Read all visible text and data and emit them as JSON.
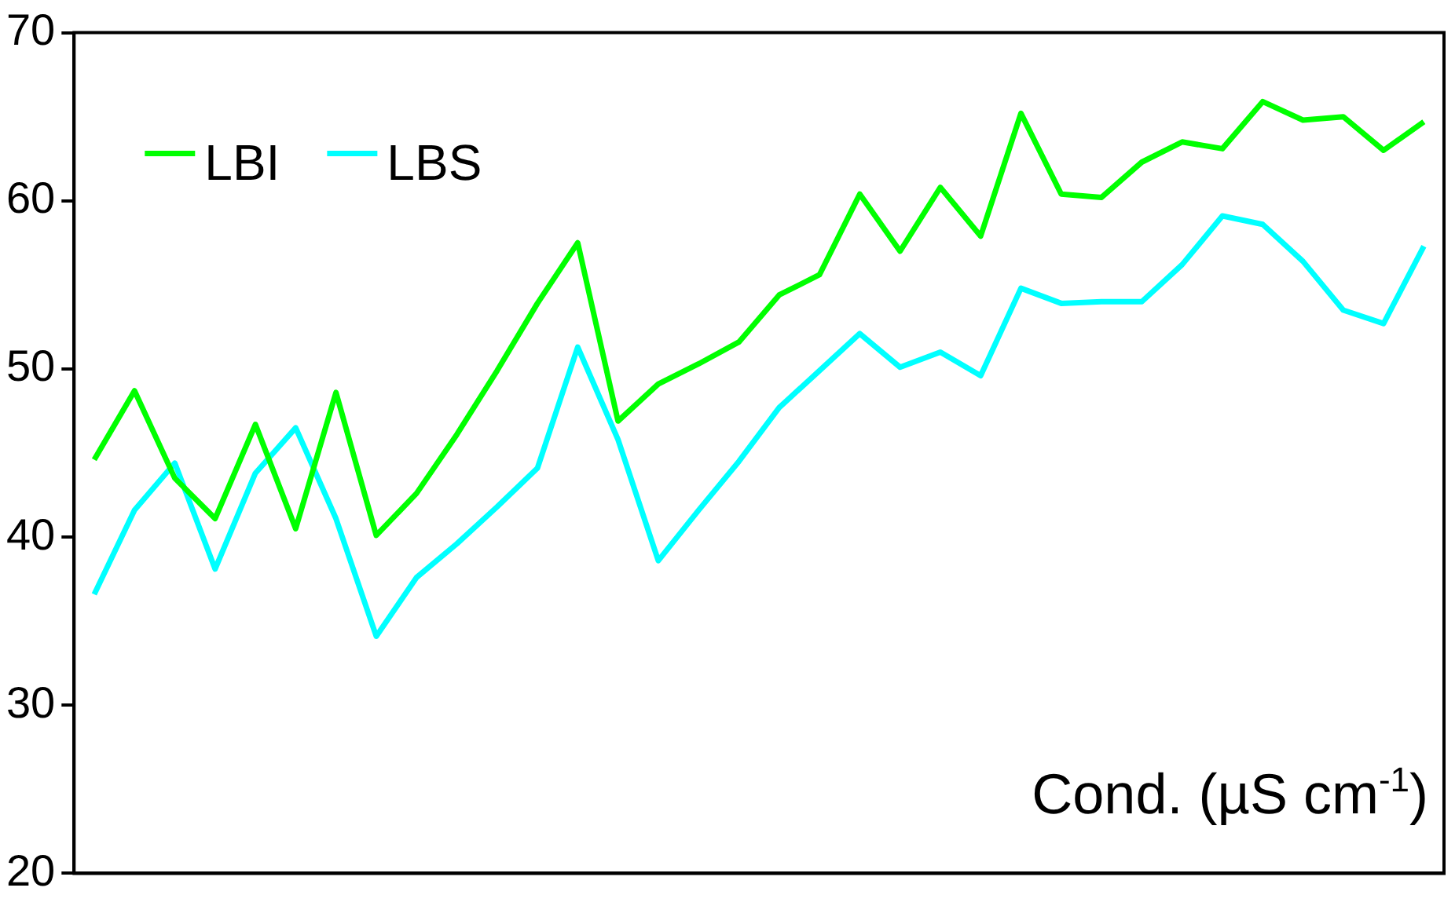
{
  "chart_data": {
    "type": "line",
    "xlabel": "Cond. (µS cm$^{-1}$)",
    "categories": [
      null,
      null,
      null,
      null,
      null,
      null,
      null,
      null,
      null,
      null,
      null,
      null,
      null,
      null,
      null,
      null,
      null,
      null,
      null,
      null,
      null,
      null,
      null,
      null,
      null,
      null,
      null,
      null,
      null,
      null,
      null,
      null,
      null,
      null
    ],
    "series": [
      {
        "name": "LBI",
        "color": "#00ff00",
        "values": [
          44.6,
          48.7,
          43.5,
          41.1,
          46.7,
          40.5,
          48.6,
          40.1,
          42.6,
          46.1,
          49.9,
          53.9,
          57.5,
          46.9,
          49.1,
          50.3,
          51.6,
          54.4,
          55.6,
          60.4,
          57.0,
          60.8,
          57.9,
          65.2,
          60.4,
          60.2,
          62.3,
          63.5,
          63.1,
          65.9,
          64.8,
          65.0,
          63.0,
          64.7
        ]
      },
      {
        "name": "LBS",
        "color": "#00ffff",
        "values": [
          36.6,
          41.6,
          44.4,
          38.1,
          43.8,
          46.5,
          41.1,
          34.1,
          37.6,
          39.6,
          41.8,
          44.1,
          51.3,
          45.8,
          38.6,
          41.6,
          44.5,
          47.7,
          49.9,
          52.1,
          50.1,
          51.0,
          49.6,
          54.8,
          53.9,
          54.0,
          54.0,
          56.2,
          59.1,
          58.6,
          56.4,
          53.5,
          52.7,
          57.3
        ]
      }
    ],
    "ylim": [
      20,
      70
    ],
    "yticks": [
      20,
      30,
      40,
      50,
      60,
      70
    ],
    "tick_labels": "y",
    "grid": false,
    "legend": "top left",
    "marker": "none",
    "line_style": "solid"
  }
}
